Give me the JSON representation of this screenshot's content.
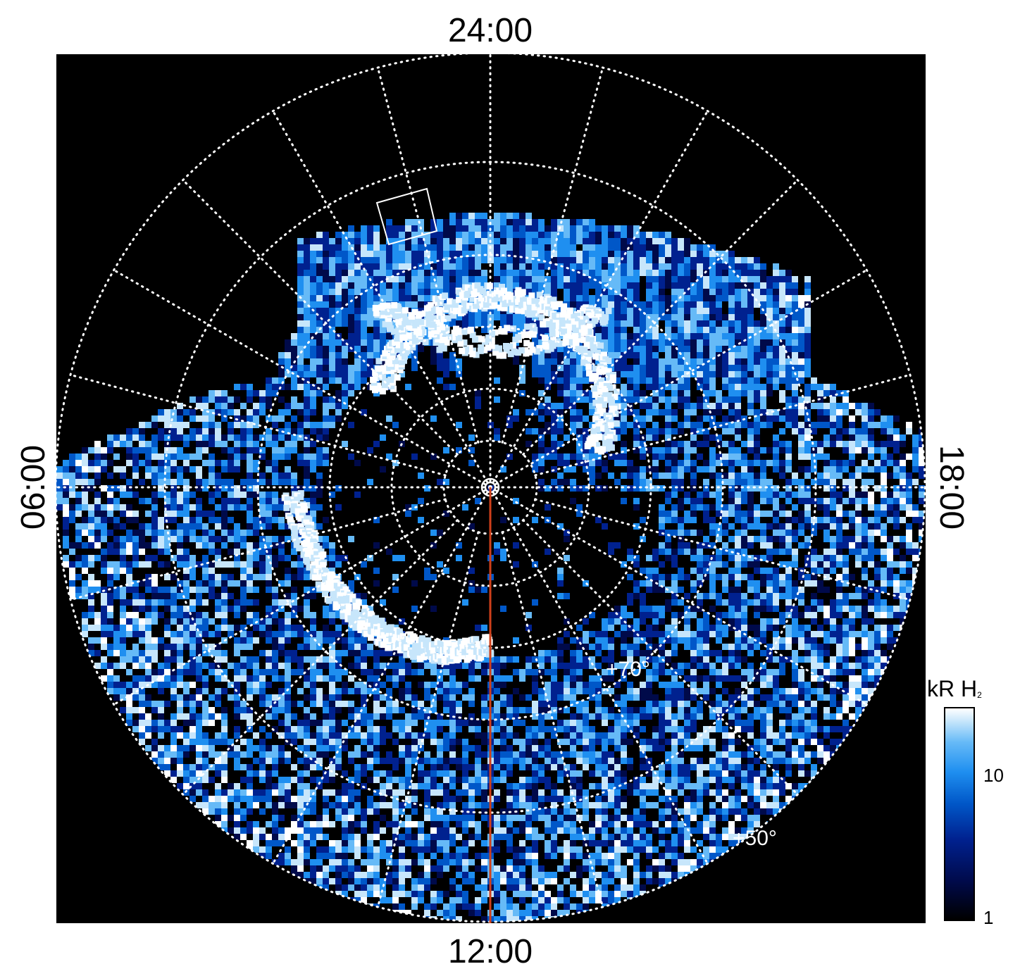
{
  "local_time_labels": {
    "top": "24:00",
    "bottom": "12:00",
    "left": "06:00",
    "right": "18:00"
  },
  "latitude_labels": {
    "inner": "+70°",
    "outer": "+50°"
  },
  "colorbar": {
    "unit_prefix": "kR H",
    "unit_subscript": "2",
    "tick_10": "10",
    "tick_1": "1",
    "colormap": [
      "#000000",
      "#000a4a",
      "#00218f",
      "#0057c8",
      "#1f8ff0",
      "#66baf7",
      "#c7e6fb",
      "#ffffff"
    ]
  },
  "colors": {
    "meridian_line": "#d0401a",
    "grid": "#ffffff",
    "background": "#000000"
  }
}
